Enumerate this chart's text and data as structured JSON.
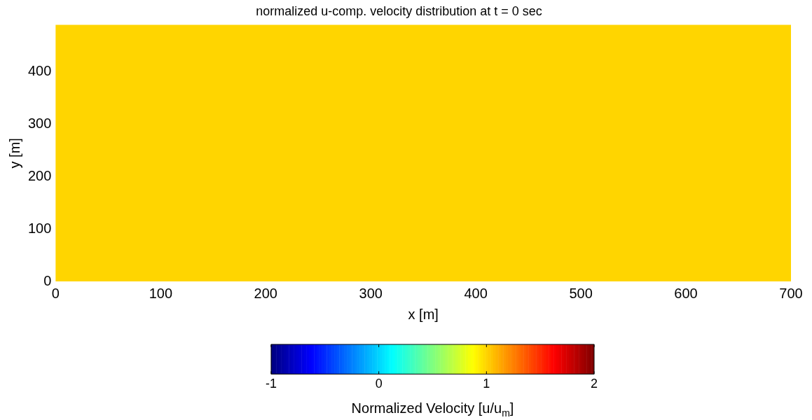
{
  "chart_data": {
    "type": "heatmap",
    "title": "normalized u-comp. velocity distribution at t = 0 sec",
    "xlabel": "x [m]",
    "ylabel": "y [m]",
    "clabel": "Normalized Velocity [u/u$_{m}$]",
    "cells": [
      [
        1
      ]
    ],
    "xlim": [
      0,
      700
    ],
    "xticks": [
      0,
      100,
      200,
      300,
      400,
      500,
      600,
      700
    ],
    "ylim": [
      0,
      490
    ],
    "yticks": [
      0,
      100,
      200,
      300,
      400
    ],
    "clim": [
      -1,
      2
    ],
    "cticks": [
      -1,
      0,
      1,
      2
    ]
  }
}
